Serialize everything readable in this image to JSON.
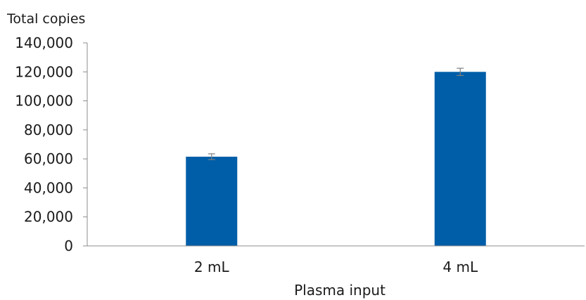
{
  "chart_data": {
    "type": "bar",
    "title": "",
    "xlabel": "Plasma input",
    "ylabel": "Total copies",
    "categories": [
      "2 mL",
      "4 mL"
    ],
    "series": [
      {
        "values": [
          61500,
          120000
        ],
        "error": [
          2000,
          2500
        ]
      }
    ],
    "ylim": [
      0,
      140000
    ],
    "yticks": [
      0,
      20000,
      40000,
      60000,
      80000,
      100000,
      120000,
      140000
    ],
    "ytick_labels": [
      "0",
      "20,000",
      "40,000",
      "60,000",
      "80,000",
      "100,000",
      "120,000",
      "140,000"
    ],
    "grid": false,
    "legend": "none",
    "colors": {
      "bar": "#005EA8",
      "axis": "#8c8c8c",
      "error_bar": "#7f7f7f",
      "text": "#1a1a1a"
    }
  }
}
